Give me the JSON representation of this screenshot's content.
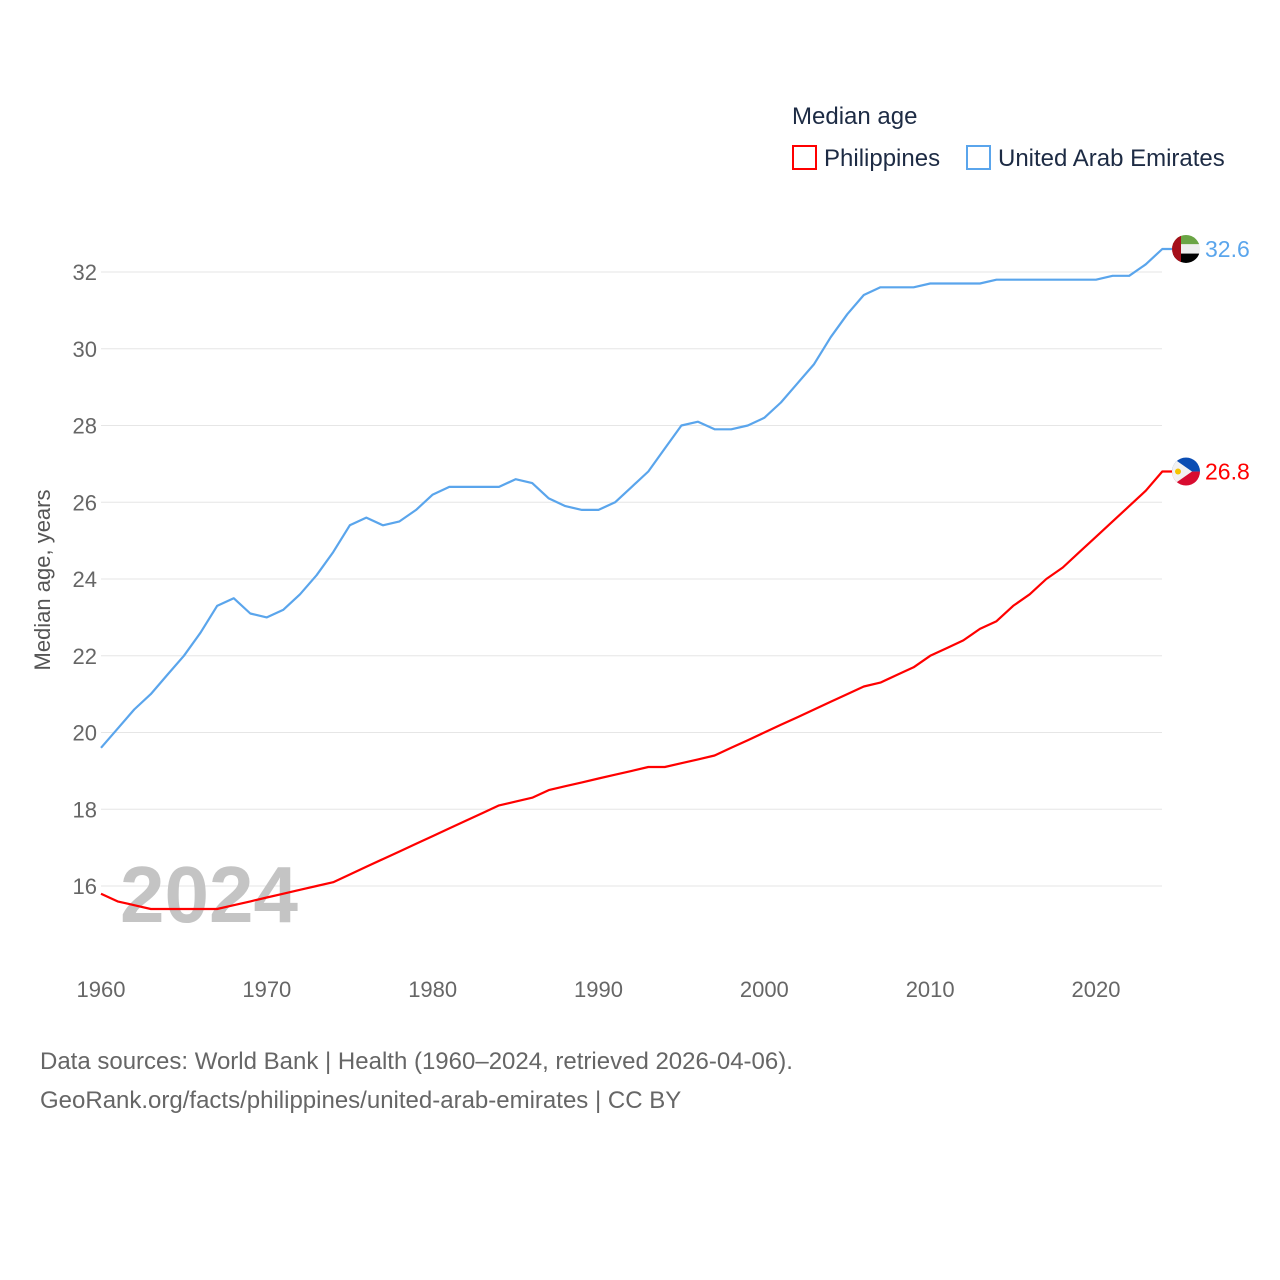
{
  "chart_data": {
    "type": "line",
    "title": "Median age",
    "ylabel": "Median age, years",
    "xlabel": "",
    "xlim": [
      1960,
      2024
    ],
    "ylim": [
      15,
      33
    ],
    "x_ticks": [
      1960,
      1970,
      1980,
      1990,
      2000,
      2010,
      2020
    ],
    "y_ticks": [
      16,
      18,
      20,
      22,
      24,
      26,
      28,
      30,
      32
    ],
    "grid": true,
    "legend_placement": "top-right",
    "watermark_year": "2024",
    "x": [
      1960,
      1961,
      1962,
      1963,
      1964,
      1965,
      1966,
      1967,
      1968,
      1969,
      1970,
      1971,
      1972,
      1973,
      1974,
      1975,
      1976,
      1977,
      1978,
      1979,
      1980,
      1981,
      1982,
      1983,
      1984,
      1985,
      1986,
      1987,
      1988,
      1989,
      1990,
      1991,
      1992,
      1993,
      1994,
      1995,
      1996,
      1997,
      1998,
      1999,
      2000,
      2001,
      2002,
      2003,
      2004,
      2005,
      2006,
      2007,
      2008,
      2009,
      2010,
      2011,
      2012,
      2013,
      2014,
      2015,
      2016,
      2017,
      2018,
      2019,
      2020,
      2021,
      2022,
      2023,
      2024
    ],
    "series": [
      {
        "name": "Philippines",
        "color": "#ff0000",
        "end_label": "26.8",
        "flag": "philippines-flag",
        "values": [
          15.8,
          15.6,
          15.5,
          15.4,
          15.4,
          15.4,
          15.4,
          15.4,
          15.5,
          15.6,
          15.7,
          15.8,
          15.9,
          16.0,
          16.1,
          16.3,
          16.5,
          16.7,
          16.9,
          17.1,
          17.3,
          17.5,
          17.7,
          17.9,
          18.1,
          18.2,
          18.3,
          18.5,
          18.6,
          18.7,
          18.8,
          18.9,
          19.0,
          19.1,
          19.1,
          19.2,
          19.3,
          19.4,
          19.6,
          19.8,
          20.0,
          20.2,
          20.4,
          20.6,
          20.8,
          21.0,
          21.2,
          21.3,
          21.5,
          21.7,
          22.0,
          22.2,
          22.4,
          22.7,
          22.9,
          23.3,
          23.6,
          24.0,
          24.3,
          24.7,
          25.1,
          25.5,
          25.9,
          26.3,
          26.8
        ]
      },
      {
        "name": "United Arab Emirates",
        "color": "#5aa5ec",
        "end_label": "32.6",
        "flag": "uae-flag",
        "values": [
          19.6,
          20.1,
          20.6,
          21.0,
          21.5,
          22.0,
          22.6,
          23.3,
          23.5,
          23.1,
          23.0,
          23.2,
          23.6,
          24.1,
          24.7,
          25.4,
          25.6,
          25.4,
          25.5,
          25.8,
          26.2,
          26.4,
          26.4,
          26.4,
          26.4,
          26.6,
          26.5,
          26.1,
          25.9,
          25.8,
          25.8,
          26.0,
          26.4,
          26.8,
          27.4,
          28.0,
          28.1,
          27.9,
          27.9,
          28.0,
          28.2,
          28.6,
          29.1,
          29.6,
          30.3,
          30.9,
          31.4,
          31.6,
          31.6,
          31.6,
          31.7,
          31.7,
          31.7,
          31.7,
          31.8,
          31.8,
          31.8,
          31.8,
          31.8,
          31.8,
          31.8,
          31.9,
          31.9,
          32.2,
          32.6
        ]
      }
    ]
  },
  "footer": {
    "line1": "Data sources: World Bank | Health (1960–2024, retrieved 2026-04-06).",
    "line2": "GeoRank.org/facts/philippines/united-arab-emirates | CC BY"
  }
}
